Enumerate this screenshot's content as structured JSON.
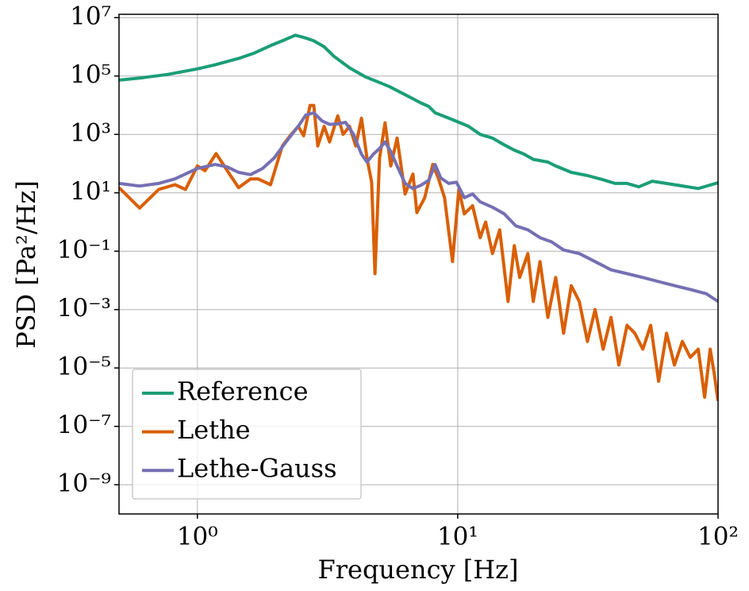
{
  "chart_data": {
    "type": "line",
    "xlabel": "Frequency [Hz]",
    "ylabel": "PSD [Pa²/Hz]",
    "xscale": "log",
    "yscale": "log",
    "grid": true,
    "legend": "lower left",
    "xlim": [
      0.5,
      100
    ],
    "ylim": [
      1e-10,
      13000000.0
    ],
    "xticks": [
      {
        "value": 1,
        "label": "10⁰"
      },
      {
        "value": 10,
        "label": "10¹"
      },
      {
        "value": 100,
        "label": "10²"
      }
    ],
    "yticks": [
      {
        "value": 1e-09,
        "label": "10⁻⁹"
      },
      {
        "value": 1e-07,
        "label": "10⁻⁷"
      },
      {
        "value": 1e-05,
        "label": "10⁻⁵"
      },
      {
        "value": 0.001,
        "label": "10⁻³"
      },
      {
        "value": 0.1,
        "label": "10⁻¹"
      },
      {
        "value": 10,
        "label": "10¹"
      },
      {
        "value": 1000,
        "label": "10³"
      },
      {
        "value": 100000,
        "label": "10⁵"
      },
      {
        "value": 10000000,
        "label": "10⁷"
      }
    ],
    "series": [
      {
        "name": "Reference",
        "color": "#1b9e77",
        "x": [
          0.5,
          0.62,
          0.77,
          1.0,
          1.17,
          1.44,
          1.66,
          1.91,
          2.12,
          2.38,
          2.61,
          2.8,
          3.07,
          3.34,
          3.84,
          4.42,
          5.45,
          6.28,
          7.21,
          7.74,
          8.19,
          9.55,
          11.0,
          12.2,
          13.6,
          14.8,
          16.5,
          18.0,
          19.5,
          22.2,
          23.8,
          27.3,
          31.5,
          36.2,
          40.2,
          44.7,
          49.6,
          55.9,
          68.0,
          83.9,
          100
        ],
        "values": [
          72000,
          88000,
          113000,
          176000,
          242000,
          400000,
          620000,
          1100000,
          1600000,
          2500000,
          2000000,
          1600000,
          1000000,
          480000,
          190000,
          94000,
          44000,
          23000,
          12000,
          9100,
          5500,
          3200,
          1900,
          1000,
          750,
          480,
          290,
          210,
          140,
          113,
          83,
          50,
          39,
          28,
          21,
          21,
          16,
          25,
          19,
          14,
          22
        ]
      },
      {
        "name": "Lethe",
        "color": "#d95f02",
        "x": [
          0.5,
          0.6,
          0.71,
          0.82,
          0.9,
          1.0,
          1.07,
          1.18,
          1.34,
          1.44,
          1.6,
          1.71,
          1.91,
          2.12,
          2.27,
          2.44,
          2.56,
          2.71,
          2.8,
          2.9,
          3.07,
          3.22,
          3.46,
          3.63,
          3.84,
          4.06,
          4.27,
          4.48,
          4.67,
          4.81,
          5.01,
          5.26,
          5.53,
          5.85,
          6.28,
          6.73,
          6.97,
          7.47,
          8.02,
          8.42,
          8.9,
          9.55,
          10.1,
          10.6,
          11.4,
          12.2,
          12.8,
          13.6,
          14.5,
          15.6,
          16.5,
          17.3,
          18.6,
          19.5,
          20.7,
          22.2,
          23.8,
          25.5,
          27.3,
          29.3,
          31.5,
          33.7,
          36.2,
          38.8,
          41.6,
          44.7,
          47.9,
          51.4,
          55.1,
          59.1,
          63.4,
          68.0,
          72.9,
          78.2,
          83.9,
          88.8,
          93.3,
          96.6,
          100
        ],
        "values": [
          15,
          3.0,
          13,
          19,
          13,
          83,
          57,
          220,
          39,
          15,
          30,
          30,
          19,
          400,
          900,
          1900,
          900,
          9800,
          9800,
          400,
          1900,
          550,
          4300,
          1000,
          1900,
          400,
          3600,
          155,
          23,
          0.017,
          155,
          2500,
          83,
          750,
          9.1,
          44,
          2.1,
          6.8,
          93,
          32,
          6.8,
          0.044,
          13,
          1.9,
          3.6,
          0.29,
          1.0,
          0.083,
          0.54,
          0.0019,
          0.155,
          0.0126,
          0.083,
          0.0019,
          0.044,
          0.00054,
          0.0126,
          0.000155,
          0.0066,
          0.0019,
          8.1e-05,
          0.001,
          4.4e-05,
          0.00054,
          1.26e-05,
          0.00029,
          0.000155,
          4.4e-05,
          0.00029,
          3.5e-06,
          0.000155,
          1.26e-05,
          8.1e-05,
          2.3e-05,
          4.4e-05,
          1e-06,
          4.4e-05,
          6.6e-06,
          7.4e-07
        ]
      },
      {
        "name": "Lethe-Gauss",
        "color": "#7570b3",
        "x": [
          0.5,
          0.6,
          0.71,
          0.82,
          1.0,
          1.17,
          1.3,
          1.44,
          1.6,
          1.78,
          1.97,
          2.19,
          2.44,
          2.61,
          2.8,
          3.01,
          3.22,
          3.46,
          3.71,
          3.98,
          4.27,
          4.48,
          4.74,
          5.01,
          5.26,
          5.53,
          5.85,
          6.28,
          6.73,
          7.21,
          7.74,
          8.19,
          8.61,
          9.23,
          9.89,
          10.6,
          11.4,
          12.2,
          13.6,
          15.1,
          16.7,
          18.6,
          20.7,
          22.9,
          25.5,
          29.3,
          33.7,
          38.8,
          44.7,
          51.4,
          59.1,
          68.0,
          78.2,
          90.0,
          100
        ],
        "values": [
          21,
          17,
          21,
          30,
          68,
          93,
          77,
          50,
          42,
          68,
          155,
          550,
          1900,
          4600,
          5500,
          2900,
          2200,
          2300,
          2600,
          1000,
          210,
          113,
          210,
          330,
          550,
          260,
          83,
          21,
          14,
          18,
          27,
          93,
          32,
          21,
          23,
          6.8,
          9.1,
          4.9,
          3.2,
          1.9,
          0.74,
          0.54,
          0.29,
          0.21,
          0.11,
          0.083,
          0.044,
          0.023,
          0.017,
          0.0126,
          0.0091,
          0.0066,
          0.0049,
          0.0035,
          0.0019
        ]
      }
    ]
  }
}
